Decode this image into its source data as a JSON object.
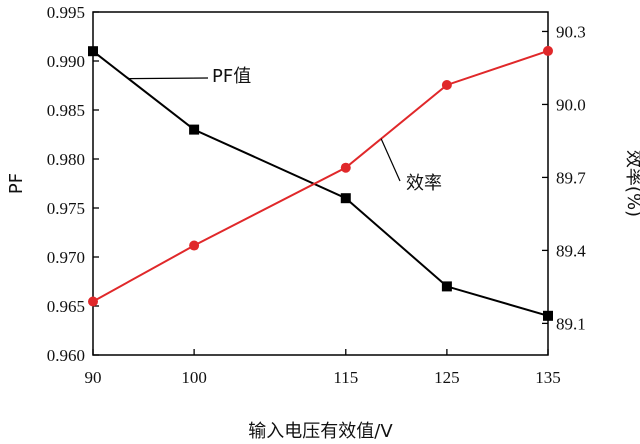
{
  "chart_data": {
    "type": "line",
    "xlabel": "输入电压有效值/V",
    "ylabel_left": "PF",
    "ylabel_right": "效率(%)",
    "x": [
      90,
      100,
      115,
      125,
      135
    ],
    "x_tick_labels": [
      "90",
      "100",
      "115",
      "125",
      "135"
    ],
    "y_left_ticks": [
      "0.960",
      "0.965",
      "0.970",
      "0.975",
      "0.980",
      "0.985",
      "0.990",
      "0.995"
    ],
    "y_left_lim": [
      0.96,
      0.995
    ],
    "y_right_ticks": [
      "89.1",
      "89.4",
      "89.7",
      "90.0",
      "90.3"
    ],
    "y_right_lim": [
      88.97,
      90.38
    ],
    "grid": false,
    "series": [
      {
        "name": "PF值",
        "axis": "left",
        "color": "#000000",
        "marker": "square",
        "values": [
          0.991,
          0.983,
          0.976,
          0.967,
          0.964
        ]
      },
      {
        "name": "效率",
        "axis": "right",
        "color": "#e0282a",
        "marker": "circle",
        "values": [
          89.19,
          89.42,
          89.74,
          90.08,
          90.22
        ]
      }
    ]
  }
}
